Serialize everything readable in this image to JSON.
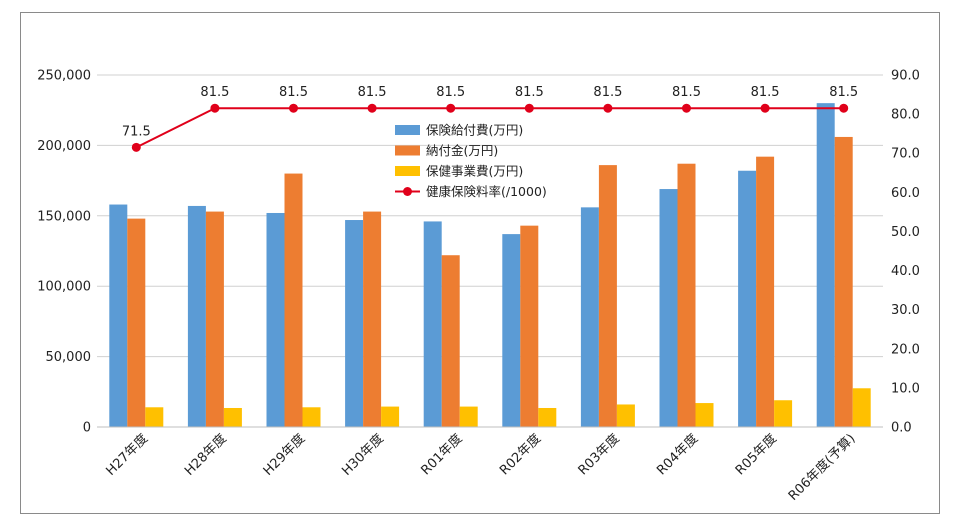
{
  "chart_data": {
    "type": "bar",
    "categories": [
      "H27年度",
      "H28年度",
      "H29年度",
      "H30年度",
      "R01年度",
      "R02年度",
      "R03年度",
      "R04年度",
      "R05年度",
      "R06年度(予算)"
    ],
    "series": [
      {
        "name": "保険給付費(万円)",
        "type": "bar",
        "axis": "left",
        "color": "#5b9bd5",
        "values": [
          158000,
          157000,
          152000,
          147000,
          146000,
          137000,
          156000,
          169000,
          182000,
          230000
        ]
      },
      {
        "name": "納付金(万円)",
        "type": "bar",
        "axis": "left",
        "color": "#ed7d31",
        "values": [
          148000,
          153000,
          180000,
          153000,
          122000,
          143000,
          186000,
          187000,
          192000,
          206000
        ]
      },
      {
        "name": "保健事業費(万円)",
        "type": "bar",
        "axis": "left",
        "color": "#ffc000",
        "values": [
          14000,
          13500,
          14000,
          14500,
          14500,
          13500,
          16000,
          17000,
          19000,
          27500
        ]
      },
      {
        "name": "健康保険料率(/1000)",
        "type": "line",
        "axis": "right",
        "color": "#e0001a",
        "values": [
          71.5,
          81.5,
          81.5,
          81.5,
          81.5,
          81.5,
          81.5,
          81.5,
          81.5,
          81.5
        ],
        "labels": [
          "71.5",
          "81.5",
          "81.5",
          "81.5",
          "81.5",
          "81.5",
          "81.5",
          "81.5",
          "81.5",
          "81.5"
        ]
      }
    ],
    "y_left": {
      "ylim": [
        0,
        250000
      ],
      "ticks": [
        "0",
        "50,000",
        "100,000",
        "150,000",
        "200,000",
        "250,000"
      ],
      "tick_values": [
        0,
        50000,
        100000,
        150000,
        200000,
        250000
      ]
    },
    "y_right": {
      "ylim": [
        0,
        90
      ],
      "ticks": [
        "0.0",
        "10.0",
        "20.0",
        "30.0",
        "40.0",
        "50.0",
        "60.0",
        "70.0",
        "80.0",
        "90.0"
      ],
      "tick_values": [
        0,
        10,
        20,
        30,
        40,
        50,
        60,
        70,
        80,
        90
      ]
    },
    "grid": true,
    "legend_position": "inside-top-center",
    "title": "",
    "xlabel": "",
    "ylabel": ""
  }
}
